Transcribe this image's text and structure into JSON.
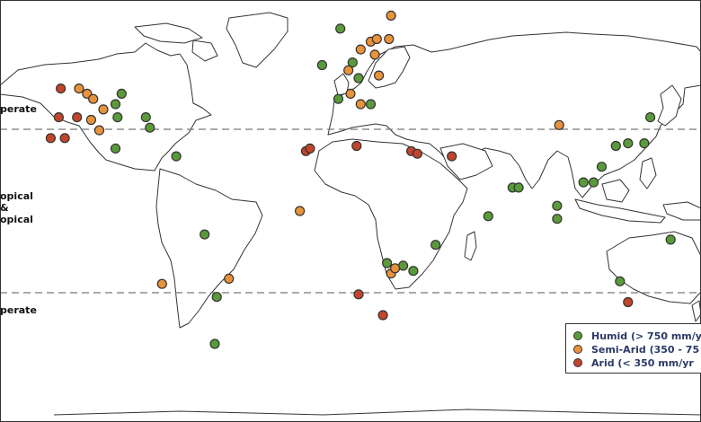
{
  "zones": {
    "north_temperate": "perate",
    "tropical": "opical\n&\nopical",
    "south_temperate": "perate"
  },
  "legend": {
    "humid": "Humid (> 750 mm/y",
    "semi_arid": "Semi-Arid (350 - 75",
    "arid": "Arid (< 350 mm/yr"
  },
  "colors": {
    "humid": "#5a9a3a",
    "semi_arid": "#e8923a",
    "arid": "#c0452b",
    "land_fill": "#ffffff",
    "coast": "#333333",
    "zone_line": "#777777"
  },
  "sites": [
    {
      "cls": "semi_arid",
      "lon": -124,
      "lat": 50
    },
    {
      "cls": "semi_arid",
      "lon": -120,
      "lat": 48
    },
    {
      "cls": "semi_arid",
      "lon": -117,
      "lat": 46
    },
    {
      "cls": "semi_arid",
      "lon": -112,
      "lat": 42
    },
    {
      "cls": "semi_arid",
      "lon": -118,
      "lat": 38
    },
    {
      "cls": "semi_arid",
      "lon": -114,
      "lat": 34
    },
    {
      "cls": "arid",
      "lon": -133,
      "lat": 50
    },
    {
      "cls": "arid",
      "lon": -125,
      "lat": 39
    },
    {
      "cls": "arid",
      "lon": -134,
      "lat": 39
    },
    {
      "cls": "arid",
      "lon": -138,
      "lat": 31
    },
    {
      "cls": "arid",
      "lon": -131,
      "lat": 31
    },
    {
      "cls": "humid",
      "lon": -103,
      "lat": 48
    },
    {
      "cls": "humid",
      "lon": -106,
      "lat": 44
    },
    {
      "cls": "humid",
      "lon": -105,
      "lat": 39
    },
    {
      "cls": "humid",
      "lon": -91,
      "lat": 39
    },
    {
      "cls": "humid",
      "lon": -89,
      "lat": 35
    },
    {
      "cls": "humid",
      "lon": -106,
      "lat": 27
    },
    {
      "cls": "humid",
      "lon": -76,
      "lat": 24
    },
    {
      "cls": "humid",
      "lon": -62,
      "lat": -6
    },
    {
      "cls": "semi_arid",
      "lon": -83,
      "lat": -25
    },
    {
      "cls": "semi_arid",
      "lon": -50,
      "lat": -23
    },
    {
      "cls": "humid",
      "lon": -56,
      "lat": -30
    },
    {
      "cls": "humid",
      "lon": -57,
      "lat": -48
    },
    {
      "cls": "humid",
      "lon": 5,
      "lat": 73
    },
    {
      "cls": "semi_arid",
      "lon": 30,
      "lat": 78
    },
    {
      "cls": "humid",
      "lon": -4,
      "lat": 59
    },
    {
      "cls": "humid",
      "lon": 11,
      "lat": 60
    },
    {
      "cls": "humid",
      "lon": 14,
      "lat": 54
    },
    {
      "cls": "humid",
      "lon": 4,
      "lat": 46
    },
    {
      "cls": "semi_arid",
      "lon": 9,
      "lat": 57
    },
    {
      "cls": "semi_arid",
      "lon": 15,
      "lat": 65
    },
    {
      "cls": "semi_arid",
      "lon": 20,
      "lat": 68
    },
    {
      "cls": "semi_arid",
      "lon": 23,
      "lat": 69
    },
    {
      "cls": "semi_arid",
      "lon": 22,
      "lat": 63
    },
    {
      "cls": "semi_arid",
      "lon": 29,
      "lat": 69
    },
    {
      "cls": "semi_arid",
      "lon": 10,
      "lat": 48
    },
    {
      "cls": "semi_arid",
      "lon": 15,
      "lat": 44
    },
    {
      "cls": "semi_arid",
      "lon": 24,
      "lat": 55
    },
    {
      "cls": "humid",
      "lon": 20,
      "lat": 44
    },
    {
      "cls": "arid",
      "lon": -12,
      "lat": 26
    },
    {
      "cls": "arid",
      "lon": -10,
      "lat": 27
    },
    {
      "cls": "arid",
      "lon": 13,
      "lat": 28
    },
    {
      "cls": "arid",
      "lon": 40,
      "lat": 26
    },
    {
      "cls": "arid",
      "lon": 43,
      "lat": 25
    },
    {
      "cls": "arid",
      "lon": 60,
      "lat": 24
    },
    {
      "cls": "semi_arid",
      "lon": -15,
      "lat": 3
    },
    {
      "cls": "humid",
      "lon": 28,
      "lat": -17
    },
    {
      "cls": "humid",
      "lon": 36,
      "lat": -18
    },
    {
      "cls": "humid",
      "lon": 41,
      "lat": -20
    },
    {
      "cls": "humid",
      "lon": 52,
      "lat": -10
    },
    {
      "cls": "semi_arid",
      "lon": 30,
      "lat": -21
    },
    {
      "cls": "semi_arid",
      "lon": 32,
      "lat": -19
    },
    {
      "cls": "arid",
      "lon": 14,
      "lat": -29
    },
    {
      "cls": "arid",
      "lon": 26,
      "lat": -37
    },
    {
      "cls": "humid",
      "lon": 90,
      "lat": 12
    },
    {
      "cls": "humid",
      "lon": 93,
      "lat": 12
    },
    {
      "cls": "humid",
      "lon": 78,
      "lat": 1
    },
    {
      "cls": "humid",
      "lon": 112,
      "lat": 5
    },
    {
      "cls": "humid",
      "lon": 112,
      "lat": 0
    },
    {
      "cls": "humid",
      "lon": 125,
      "lat": 14
    },
    {
      "cls": "humid",
      "lon": 130,
      "lat": 14
    },
    {
      "cls": "humid",
      "lon": 134,
      "lat": 20
    },
    {
      "cls": "humid",
      "lon": 141,
      "lat": 28
    },
    {
      "cls": "humid",
      "lon": 147,
      "lat": 29
    },
    {
      "cls": "humid",
      "lon": 155,
      "lat": 29
    },
    {
      "cls": "humid",
      "lon": 158,
      "lat": 39
    },
    {
      "cls": "semi_arid",
      "lon": 113,
      "lat": 36
    },
    {
      "cls": "humid",
      "lon": 168,
      "lat": -8
    },
    {
      "cls": "humid",
      "lon": 143,
      "lat": -24
    },
    {
      "cls": "arid",
      "lon": 147,
      "lat": -32
    }
  ]
}
